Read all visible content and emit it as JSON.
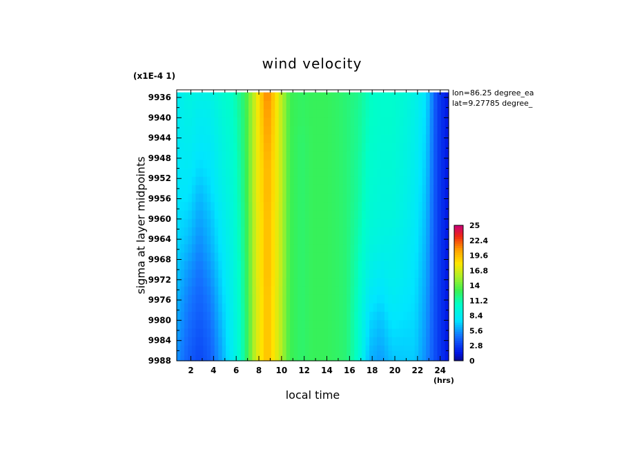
{
  "chart_data": {
    "type": "heatmap",
    "title": "wind velocity",
    "scale_note": "(x1E-4 1)",
    "info": [
      "lon=86.25 degree_ea",
      "lat=9.27785 degree_"
    ],
    "xlabel": "local time",
    "x_unit": "(hrs)",
    "ylabel": "sigma at layer midpoints",
    "x_ticks": [
      "2",
      "4",
      "6",
      "8",
      "10",
      "12",
      "14",
      "16",
      "18",
      "20",
      "22",
      "24"
    ],
    "y_ticks": [
      "9936",
      "9940",
      "9944",
      "9948",
      "9952",
      "9956",
      "9960",
      "9964",
      "9968",
      "9972",
      "9976",
      "9980",
      "9984",
      "9988"
    ],
    "xlim": [
      0.75,
      24.75
    ],
    "ylim": [
      9988,
      9934.5
    ],
    "colorbar_ticks": [
      "25",
      "22.4",
      "19.6",
      "16.8",
      "14",
      "11.2",
      "8.4",
      "5.6",
      "2.8",
      "0"
    ],
    "colorbar_range": [
      0,
      25
    ],
    "x": [
      0.75,
      1.75,
      2.75,
      3.75,
      4.75,
      5.75,
      6.75,
      7.75,
      8.75,
      9.75,
      10.75,
      11.75,
      12.75,
      13.75,
      14.75,
      15.75,
      16.75,
      17.75,
      18.75,
      19.75,
      20.75,
      21.75,
      22.75,
      23.75,
      24.75
    ],
    "y": [
      9935,
      9940,
      9945,
      9950,
      9955,
      9960,
      9965,
      9970,
      9975,
      9980,
      9985,
      9988
    ],
    "z": [
      [
        8.2,
        9.2,
        8.8,
        9.0,
        10.0,
        10.6,
        12.6,
        17.0,
        21.5,
        17.0,
        13.0,
        12.6,
        12.8,
        12.8,
        12.6,
        12.2,
        11.8,
        10.6,
        10.2,
        10.2,
        9.8,
        9.0,
        7.5,
        3.0,
        1.5
      ],
      [
        8.2,
        8.8,
        8.2,
        8.4,
        9.6,
        10.4,
        12.4,
        17.0,
        21.0,
        17.0,
        13.0,
        12.6,
        12.8,
        12.8,
        12.6,
        12.2,
        11.6,
        10.6,
        10.2,
        10.2,
        9.6,
        8.8,
        7.2,
        3.0,
        1.5
      ],
      [
        8.0,
        8.4,
        7.8,
        8.0,
        9.2,
        10.2,
        12.4,
        17.0,
        20.5,
        17.0,
        13.0,
        12.4,
        12.8,
        12.8,
        12.6,
        12.2,
        11.6,
        10.4,
        10.0,
        10.0,
        9.4,
        8.6,
        7.0,
        3.0,
        1.5
      ],
      [
        7.8,
        8.0,
        7.2,
        7.6,
        9.0,
        10.0,
        12.2,
        17.0,
        20.0,
        17.0,
        13.0,
        12.4,
        12.8,
        12.8,
        12.6,
        12.2,
        11.4,
        10.2,
        9.8,
        9.8,
        9.2,
        8.4,
        6.8,
        3.0,
        1.5
      ],
      [
        7.6,
        7.6,
        6.4,
        7.2,
        8.6,
        9.8,
        12.2,
        17.0,
        20.0,
        17.0,
        13.0,
        12.4,
        12.8,
        12.8,
        12.6,
        12.2,
        11.4,
        10.0,
        9.6,
        9.6,
        9.0,
        8.2,
        6.6,
        3.0,
        1.5
      ],
      [
        7.4,
        7.0,
        5.8,
        6.6,
        8.2,
        9.6,
        12.0,
        16.8,
        19.8,
        16.8,
        13.0,
        12.4,
        12.8,
        12.8,
        12.6,
        12.2,
        11.2,
        9.8,
        9.4,
        9.4,
        8.8,
        8.0,
        6.4,
        3.0,
        1.5
      ],
      [
        7.2,
        6.4,
        5.2,
        6.2,
        7.8,
        9.4,
        12.0,
        16.8,
        19.8,
        16.8,
        13.0,
        12.4,
        12.8,
        12.8,
        12.6,
        12.2,
        11.0,
        9.4,
        9.0,
        8.8,
        8.4,
        7.8,
        6.2,
        3.0,
        1.5
      ],
      [
        6.8,
        5.6,
        4.6,
        5.6,
        7.4,
        9.2,
        11.8,
        16.8,
        19.8,
        16.8,
        13.0,
        12.4,
        12.8,
        12.8,
        12.6,
        12.2,
        10.8,
        8.8,
        8.2,
        8.6,
        8.2,
        7.6,
        6.0,
        3.0,
        1.5
      ],
      [
        6.4,
        5.0,
        4.2,
        5.0,
        7.0,
        9.0,
        11.8,
        16.6,
        19.6,
        16.6,
        13.0,
        12.4,
        12.8,
        12.8,
        12.6,
        12.2,
        10.6,
        8.0,
        7.4,
        8.2,
        7.8,
        7.4,
        5.8,
        3.0,
        1.5
      ],
      [
        6.0,
        4.6,
        3.8,
        4.6,
        6.6,
        8.8,
        11.6,
        16.6,
        19.6,
        16.6,
        13.0,
        12.4,
        12.8,
        12.8,
        12.6,
        12.2,
        10.4,
        7.2,
        6.6,
        7.6,
        7.4,
        7.2,
        5.6,
        3.0,
        1.5
      ],
      [
        5.6,
        4.2,
        3.4,
        4.2,
        6.2,
        8.6,
        11.6,
        16.6,
        19.6,
        16.6,
        13.0,
        12.4,
        12.8,
        12.8,
        12.6,
        12.2,
        10.4,
        6.6,
        6.0,
        7.0,
        7.0,
        7.0,
        5.4,
        3.0,
        1.5
      ],
      [
        5.4,
        4.0,
        3.2,
        4.0,
        6.0,
        8.4,
        11.6,
        16.6,
        19.6,
        16.6,
        13.0,
        12.4,
        12.8,
        12.8,
        12.6,
        12.2,
        10.2,
        6.2,
        5.6,
        6.6,
        6.8,
        6.8,
        5.2,
        3.0,
        1.5
      ]
    ]
  }
}
